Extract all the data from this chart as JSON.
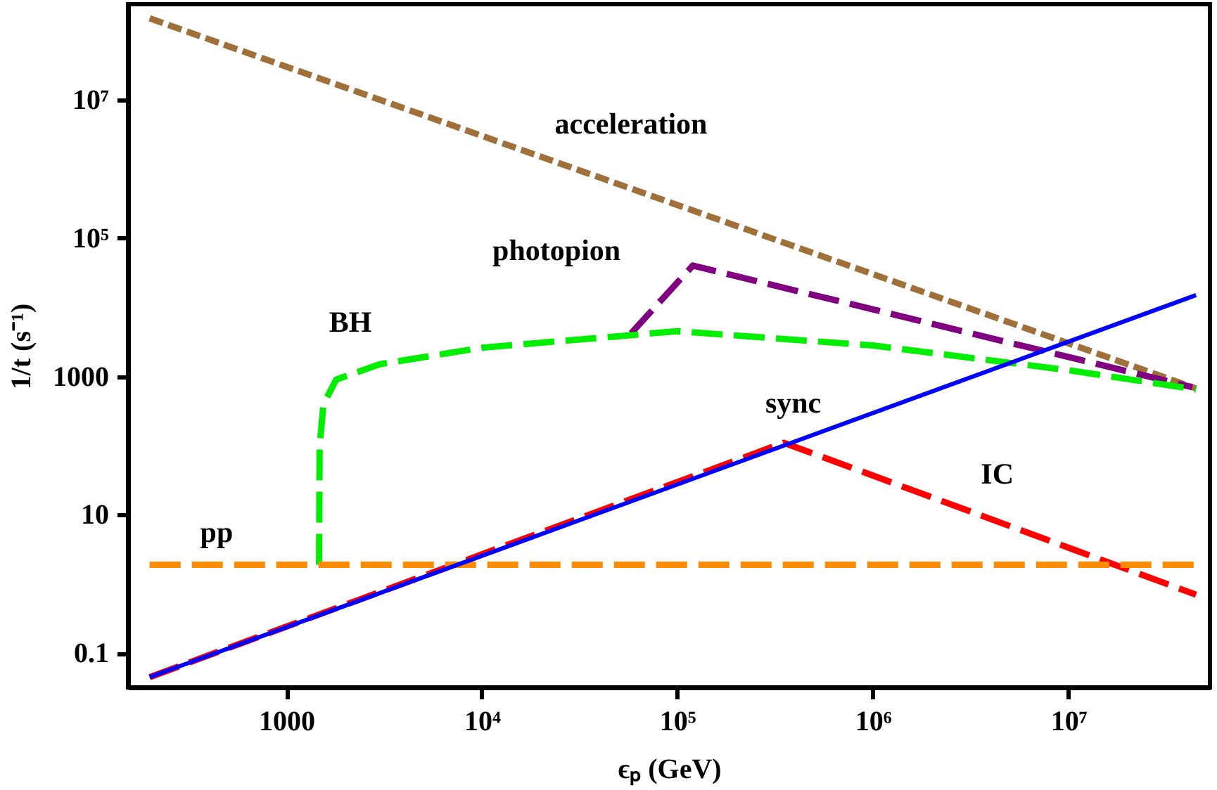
{
  "chart_data": {
    "type": "line",
    "xlabel": "ϵₚ (GeV)",
    "ylabel": "1/t (s⁻¹)",
    "log": "xy",
    "grid": false,
    "marker": "none",
    "xlim": [
      155,
      53000000
    ],
    "ylim": [
      0.032,
      240000000
    ],
    "xticks": [
      1000,
      {
        "value": 10000,
        "label": "10⁴"
      },
      {
        "value": 100000,
        "label": "10⁵"
      },
      {
        "value": 1000000,
        "label": "10⁶"
      },
      {
        "value": 10000000,
        "label": "10⁷"
      }
    ],
    "yticks": [
      0.1,
      10,
      1000,
      {
        "value": 100000,
        "label": "10⁵"
      },
      {
        "value": 10000000,
        "label": "10⁷"
      }
    ],
    "series": [
      {
        "name": "acceleration",
        "color": "#a0703a",
        "line_style": "dashed",
        "x": [
          200,
          45000000
        ],
        "values": [
          150000000,
          670
        ]
      },
      {
        "name": "photopion",
        "color": "#800080",
        "line_style": "dashed",
        "x": [
          58000,
          120000,
          43000000
        ],
        "values": [
          4200,
          40000,
          700
        ]
      },
      {
        "name": "BH",
        "color": "#00ee00",
        "line_style": "dashed",
        "x": [
          1470,
          1480,
          1550,
          1800,
          3000,
          10000,
          100000,
          1000000,
          10000000,
          45000000
        ],
        "values": [
          1.9,
          100,
          400,
          900,
          1500,
          2600,
          4500,
          2800,
          1230,
          650
        ]
      },
      {
        "name": "sync",
        "color": "#0000ff",
        "line_style": "solid",
        "x": [
          200,
          45000000
        ],
        "values": [
          0.045,
          15000
        ]
      },
      {
        "name": "IC",
        "color": "#ff0000",
        "line_style": "dashed",
        "x": [
          200,
          350000,
          45000000
        ],
        "values": [
          0.045,
          110,
          0.7
        ]
      },
      {
        "name": "pp",
        "color": "#ff8c00",
        "line_style": "dashed",
        "x": [
          200,
          45000000
        ],
        "values": [
          1.9,
          1.9
        ]
      }
    ]
  }
}
